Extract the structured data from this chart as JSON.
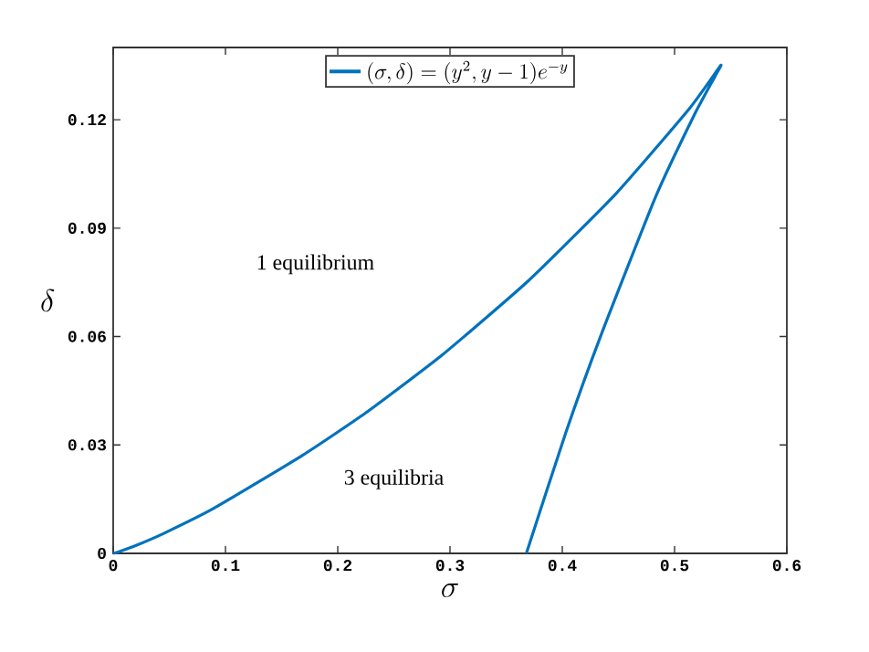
{
  "chart_data": {
    "type": "line",
    "xlabel": "\\sigma",
    "ylabel": "\\delta",
    "xlim": [
      0,
      0.6
    ],
    "ylim": [
      0,
      0.14
    ],
    "xticks": [
      0,
      0.1,
      0.2,
      0.3,
      0.4,
      0.5,
      0.6
    ],
    "yticks": [
      0,
      0.03,
      0.06,
      0.09,
      0.12
    ],
    "grid": false,
    "legend": "top",
    "line_style": "solid",
    "marker": "none",
    "annotations": [
      "1 equilibrium",
      "3 equilibria"
    ],
    "series": [
      {
        "name": "(\\sigma,\\delta)=(y^2,y-1)e^{-y}",
        "color": "#0072bd",
        "x": [
          0.368,
          0.403,
          0.434,
          0.483,
          0.517,
          0.536,
          0.541,
          0.513,
          0.448,
          0.37,
          0.293,
          0.225,
          0.168,
          0.0892,
          0.0447,
          0.0215,
          0.00454,
          0
        ],
        "values": [
          0,
          0.0333,
          0.06,
          0.0986,
          0.121,
          0.132,
          0.135,
          0.123,
          0.0996,
          0.0755,
          0.0549,
          0.0389,
          0.027,
          0.0124,
          0.00547,
          0.00235,
          0.00041,
          0
        ]
      }
    ]
  }
}
